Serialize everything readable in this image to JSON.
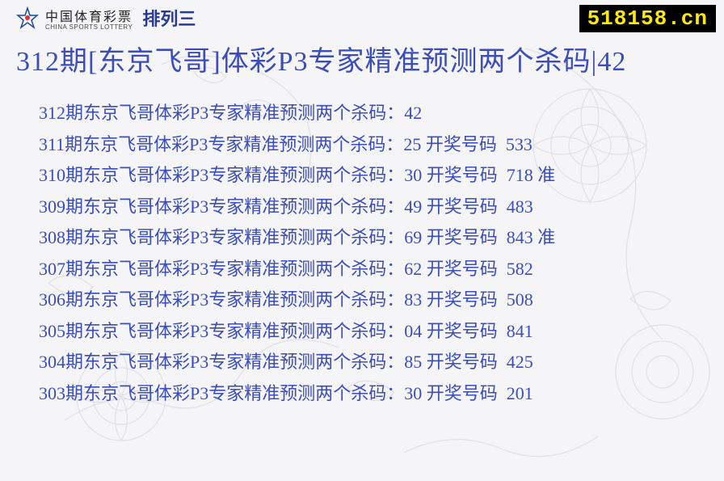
{
  "header": {
    "logo_cn": "中国体育彩票",
    "logo_en": "CHINA SPORTS LOTTERY",
    "logo_suffix": "排列三",
    "url": "518158.cn"
  },
  "title": "312期[东京飞哥]体彩P3专家精准预测两个杀码|42",
  "colors": {
    "text_main": "#3b4db8",
    "badge_bg": "#000000",
    "badge_fg": "#ffea00",
    "page_bg": "#f5f5f7"
  },
  "rows": [
    {
      "period": "312",
      "pred": "42",
      "draw_label": "",
      "draw": "",
      "mark": ""
    },
    {
      "period": "311",
      "pred": "25",
      "draw_label": "开奖号码",
      "draw": "533",
      "mark": ""
    },
    {
      "period": "310",
      "pred": "30",
      "draw_label": "开奖号码",
      "draw": "718",
      "mark": "准"
    },
    {
      "period": "309",
      "pred": "49",
      "draw_label": "开奖号码",
      "draw": "483",
      "mark": ""
    },
    {
      "period": "308",
      "pred": "69",
      "draw_label": "开奖号码",
      "draw": "843",
      "mark": "准"
    },
    {
      "period": "307",
      "pred": "62",
      "draw_label": "开奖号码",
      "draw": "582",
      "mark": ""
    },
    {
      "period": "306",
      "pred": "83",
      "draw_label": "开奖号码",
      "draw": "508",
      "mark": ""
    },
    {
      "period": "305",
      "pred": "04",
      "draw_label": "开奖号码",
      "draw": "841",
      "mark": ""
    },
    {
      "period": "304",
      "pred": "85",
      "draw_label": "开奖号码",
      "draw": "425",
      "mark": ""
    },
    {
      "period": "303",
      "pred": "30",
      "draw_label": "开奖号码",
      "draw": "201",
      "mark": ""
    }
  ],
  "row_template": {
    "prefix": "期东京飞哥体彩P3专家精准预测两个杀码：",
    "gap1": " ",
    "gap2": "  ",
    "gap3": " "
  }
}
